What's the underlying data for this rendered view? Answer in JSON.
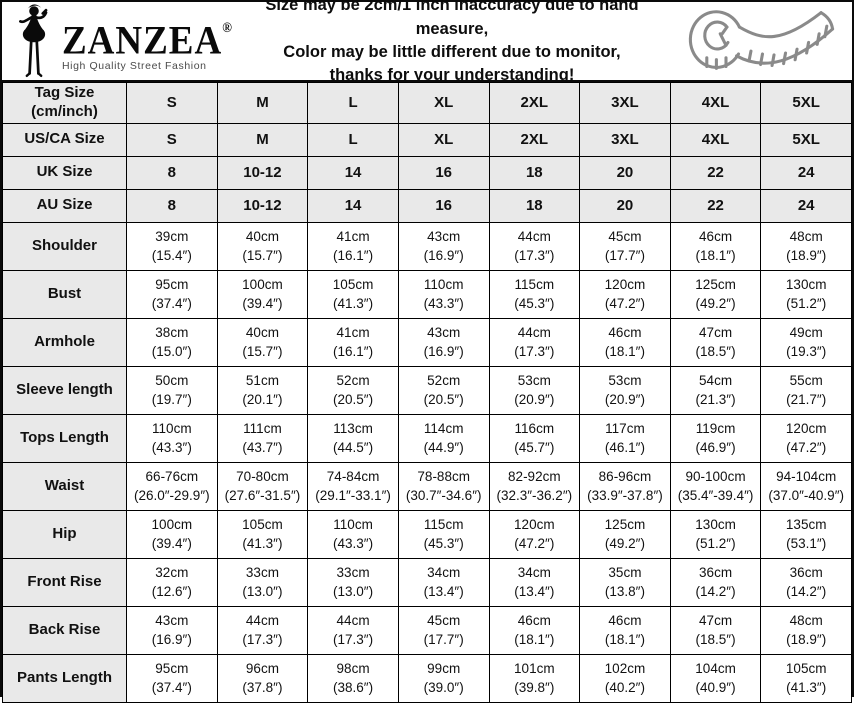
{
  "header": {
    "brand": "ZANZEA",
    "registered": "®",
    "tagline": "High Quality Street Fashion",
    "notice_lines": [
      "Size may be 2cm/1 inch inaccuracy due to hand measure,",
      "Color may be little different due to monitor,",
      "thanks for your understanding!"
    ],
    "icons": {
      "logo_mark": "woman-silhouette-icon",
      "right_icon": "measuring-tape-icon"
    }
  },
  "colors": {
    "grid_border": "#000000",
    "header_cell_bg": "#e9e9e9",
    "data_cell_bg": "#ffffff",
    "tape_icon": "#8a8a8a",
    "text": "#111111"
  },
  "table": {
    "header_rows": [
      {
        "label_lines": [
          "Tag Size",
          "(cm/inch)"
        ],
        "tall": true,
        "values": [
          "S",
          "M",
          "L",
          "XL",
          "2XL",
          "3XL",
          "4XL",
          "5XL"
        ]
      },
      {
        "label_lines": [
          "US/CA Size"
        ],
        "values": [
          "S",
          "M",
          "L",
          "XL",
          "2XL",
          "3XL",
          "4XL",
          "5XL"
        ]
      },
      {
        "label_lines": [
          "UK Size"
        ],
        "values": [
          "8",
          "10-12",
          "14",
          "16",
          "18",
          "20",
          "22",
          "24"
        ]
      },
      {
        "label_lines": [
          "AU Size"
        ],
        "values": [
          "8",
          "10-12",
          "14",
          "16",
          "18",
          "20",
          "22",
          "24"
        ]
      }
    ],
    "measurement_rows": [
      {
        "label": "Shoulder",
        "cells": [
          [
            "39cm",
            "(15.4″)"
          ],
          [
            "40cm",
            "(15.7″)"
          ],
          [
            "41cm",
            "(16.1″)"
          ],
          [
            "43cm",
            "(16.9″)"
          ],
          [
            "44cm",
            "(17.3″)"
          ],
          [
            "45cm",
            "(17.7″)"
          ],
          [
            "46cm",
            "(18.1″)"
          ],
          [
            "48cm",
            "(18.9″)"
          ]
        ]
      },
      {
        "label": "Bust",
        "cells": [
          [
            "95cm",
            "(37.4″)"
          ],
          [
            "100cm",
            "(39.4″)"
          ],
          [
            "105cm",
            "(41.3″)"
          ],
          [
            "110cm",
            "(43.3″)"
          ],
          [
            "115cm",
            "(45.3″)"
          ],
          [
            "120cm",
            "(47.2″)"
          ],
          [
            "125cm",
            "(49.2″)"
          ],
          [
            "130cm",
            "(51.2″)"
          ]
        ]
      },
      {
        "label": "Armhole",
        "cells": [
          [
            "38cm",
            "(15.0″)"
          ],
          [
            "40cm",
            "(15.7″)"
          ],
          [
            "41cm",
            "(16.1″)"
          ],
          [
            "43cm",
            "(16.9″)"
          ],
          [
            "44cm",
            "(17.3″)"
          ],
          [
            "46cm",
            "(18.1″)"
          ],
          [
            "47cm",
            "(18.5″)"
          ],
          [
            "49cm",
            "(19.3″)"
          ]
        ]
      },
      {
        "label": "Sleeve length",
        "cells": [
          [
            "50cm",
            "(19.7″)"
          ],
          [
            "51cm",
            "(20.1″)"
          ],
          [
            "52cm",
            "(20.5″)"
          ],
          [
            "52cm",
            "(20.5″)"
          ],
          [
            "53cm",
            "(20.9″)"
          ],
          [
            "53cm",
            "(20.9″)"
          ],
          [
            "54cm",
            "(21.3″)"
          ],
          [
            "55cm",
            "(21.7″)"
          ]
        ]
      },
      {
        "label": "Tops Length",
        "cells": [
          [
            "110cm",
            "(43.3″)"
          ],
          [
            "111cm",
            "(43.7″)"
          ],
          [
            "113cm",
            "(44.5″)"
          ],
          [
            "114cm",
            "(44.9″)"
          ],
          [
            "116cm",
            "(45.7″)"
          ],
          [
            "117cm",
            "(46.1″)"
          ],
          [
            "119cm",
            "(46.9″)"
          ],
          [
            "120cm",
            "(47.2″)"
          ]
        ]
      },
      {
        "label": "Waist",
        "cells": [
          [
            "66-76cm",
            "(26.0″-29.9″)"
          ],
          [
            "70-80cm",
            "(27.6″-31.5″)"
          ],
          [
            "74-84cm",
            "(29.1″-33.1″)"
          ],
          [
            "78-88cm",
            "(30.7″-34.6″)"
          ],
          [
            "82-92cm",
            "(32.3″-36.2″)"
          ],
          [
            "86-96cm",
            "(33.9″-37.8″)"
          ],
          [
            "90-100cm",
            "(35.4″-39.4″)"
          ],
          [
            "94-104cm",
            "(37.0″-40.9″)"
          ]
        ]
      },
      {
        "label": "Hip",
        "cells": [
          [
            "100cm",
            "(39.4″)"
          ],
          [
            "105cm",
            "(41.3″)"
          ],
          [
            "110cm",
            "(43.3″)"
          ],
          [
            "115cm",
            "(45.3″)"
          ],
          [
            "120cm",
            "(47.2″)"
          ],
          [
            "125cm",
            "(49.2″)"
          ],
          [
            "130cm",
            "(51.2″)"
          ],
          [
            "135cm",
            "(53.1″)"
          ]
        ]
      },
      {
        "label": "Front Rise",
        "cells": [
          [
            "32cm",
            "(12.6″)"
          ],
          [
            "33cm",
            "(13.0″)"
          ],
          [
            "33cm",
            "(13.0″)"
          ],
          [
            "34cm",
            "(13.4″)"
          ],
          [
            "34cm",
            "(13.4″)"
          ],
          [
            "35cm",
            "(13.8″)"
          ],
          [
            "36cm",
            "(14.2″)"
          ],
          [
            "36cm",
            "(14.2″)"
          ]
        ]
      },
      {
        "label": "Back Rise",
        "cells": [
          [
            "43cm",
            "(16.9″)"
          ],
          [
            "44cm",
            "(17.3″)"
          ],
          [
            "44cm",
            "(17.3″)"
          ],
          [
            "45cm",
            "(17.7″)"
          ],
          [
            "46cm",
            "(18.1″)"
          ],
          [
            "46cm",
            "(18.1″)"
          ],
          [
            "47cm",
            "(18.5″)"
          ],
          [
            "48cm",
            "(18.9″)"
          ]
        ]
      },
      {
        "label": "Pants Length",
        "cells": [
          [
            "95cm",
            "(37.4″)"
          ],
          [
            "96cm",
            "(37.8″)"
          ],
          [
            "98cm",
            "(38.6″)"
          ],
          [
            "99cm",
            "(39.0″)"
          ],
          [
            "101cm",
            "(39.8″)"
          ],
          [
            "102cm",
            "(40.2″)"
          ],
          [
            "104cm",
            "(40.9″)"
          ],
          [
            "105cm",
            "(41.3″)"
          ]
        ]
      }
    ]
  }
}
